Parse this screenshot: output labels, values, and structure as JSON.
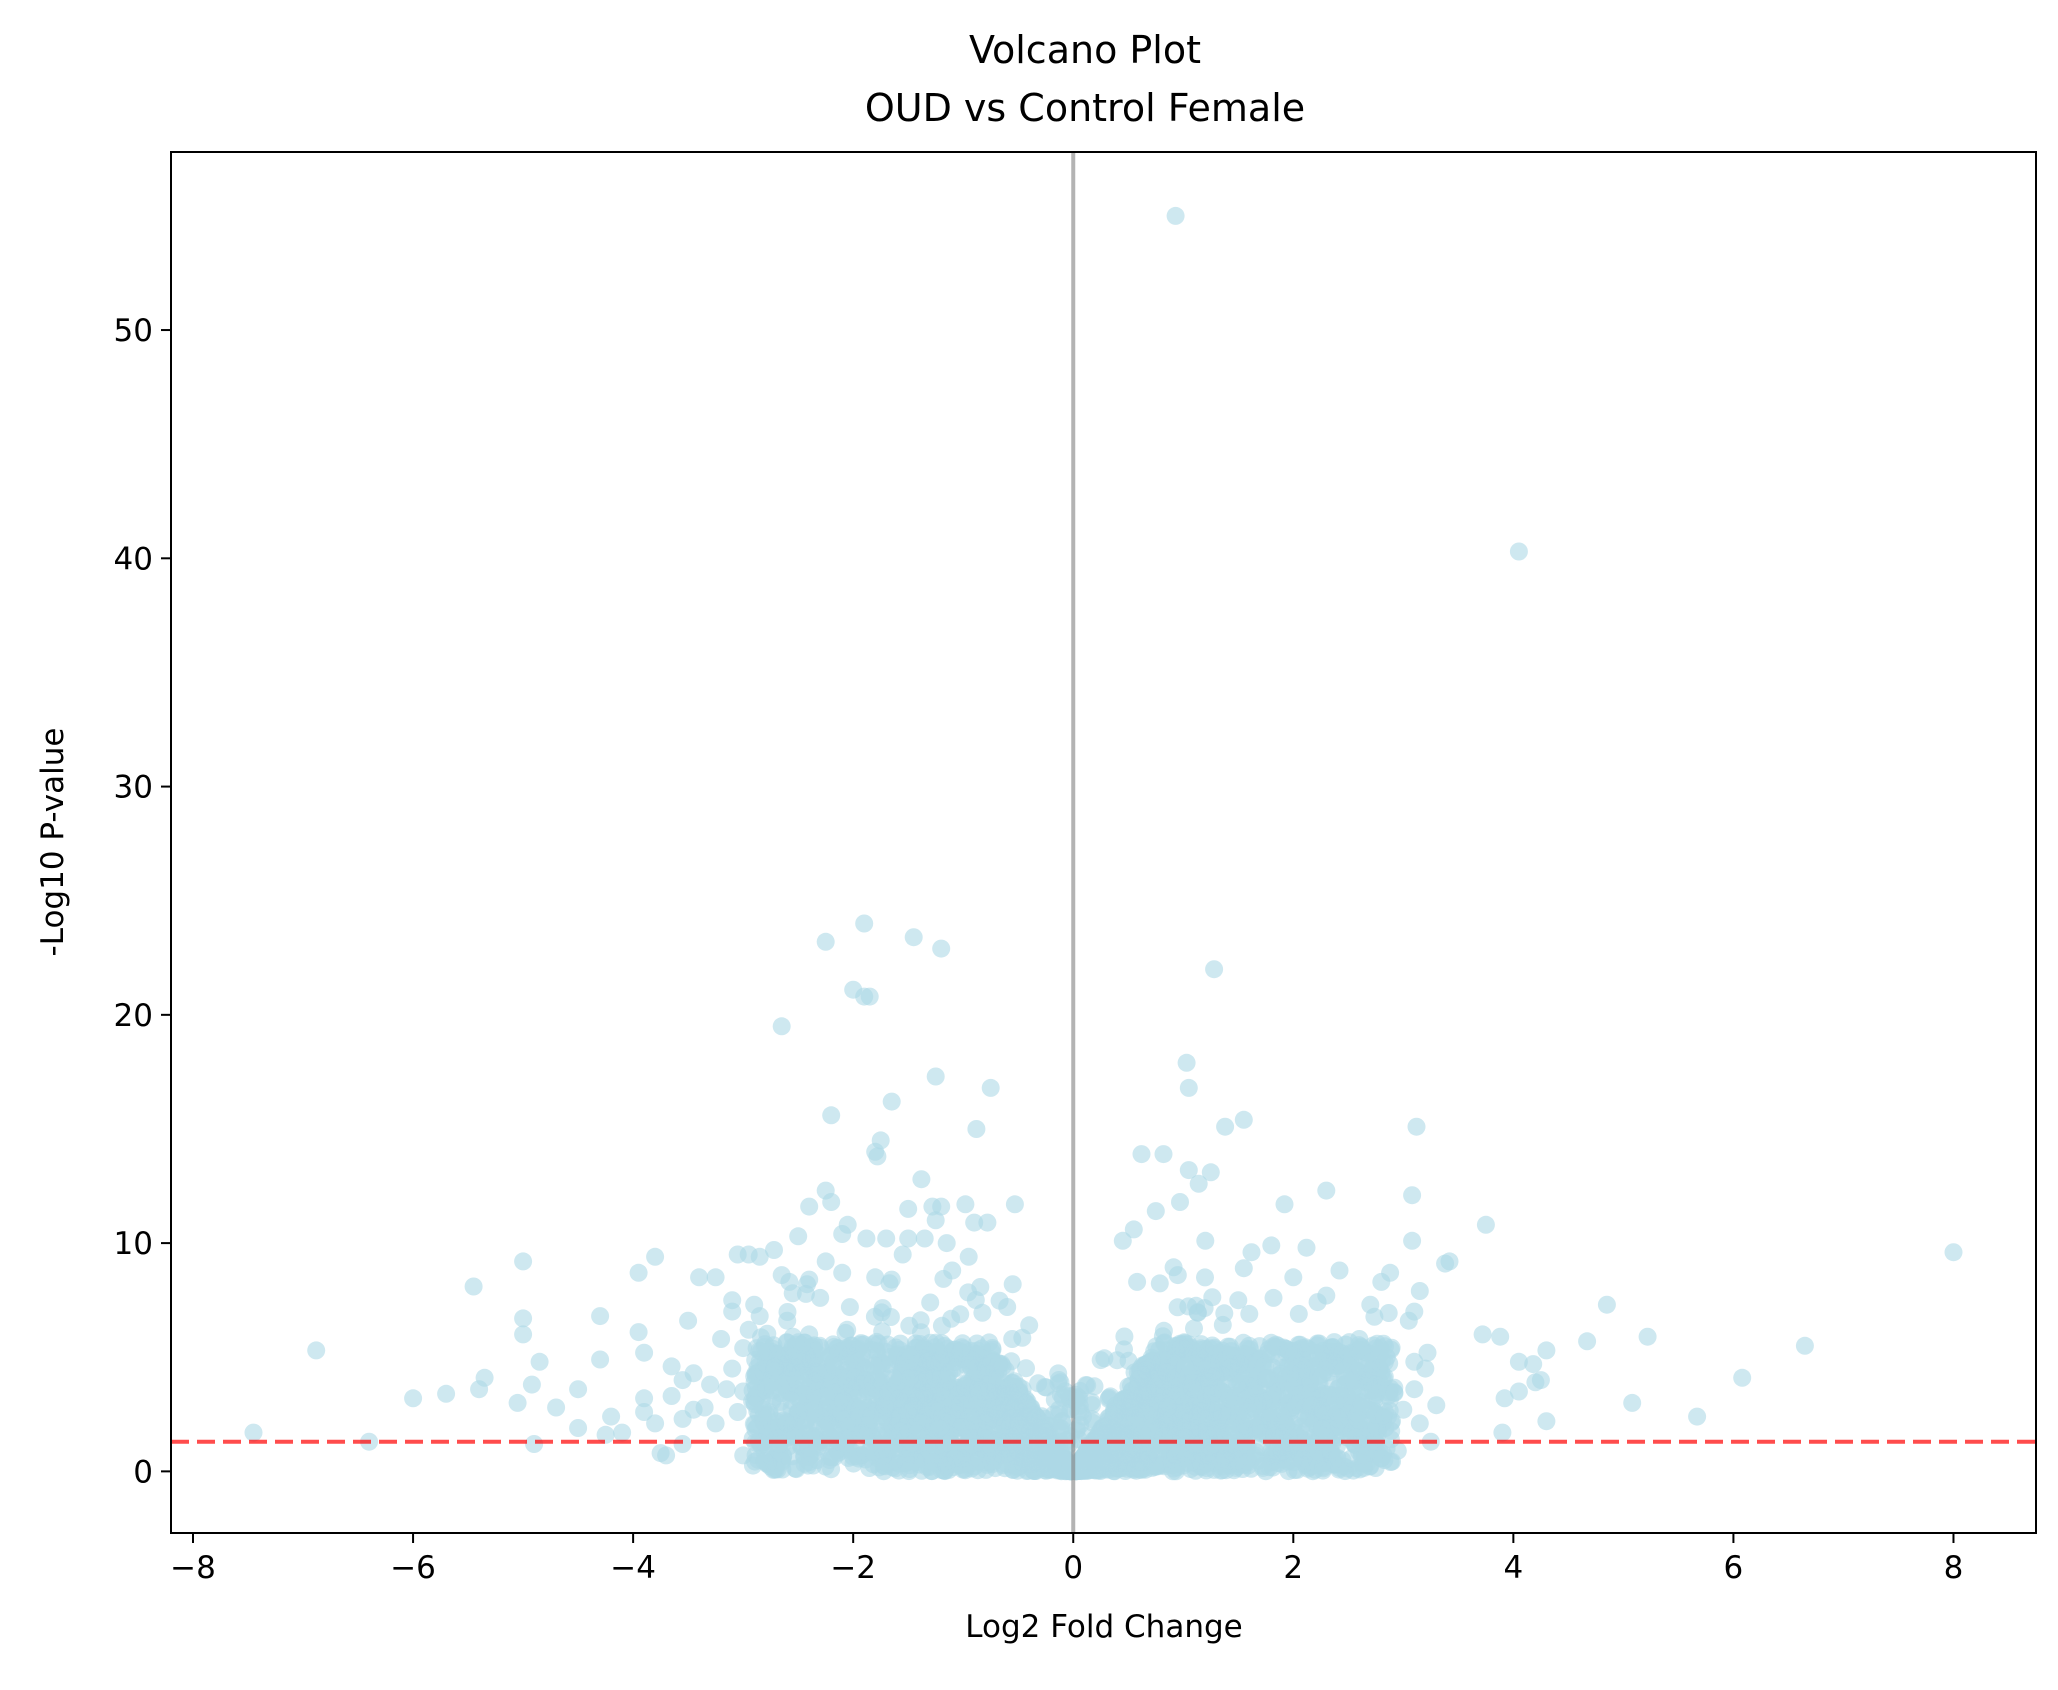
{
  "chart_data": {
    "type": "scatter",
    "title": "Volcano Plot",
    "subtitle": "OUD vs Control Female",
    "xlabel": "Log2 Fold Change",
    "ylabel": "-Log10 P-value",
    "xlim": [
      -8.2,
      8.75
    ],
    "ylim": [
      -2.7,
      57.8
    ],
    "xticks": [
      -8,
      -6,
      -4,
      -2,
      0,
      2,
      4,
      6,
      8
    ],
    "xtick_labels": [
      "−8",
      "−6",
      "−4",
      "−2",
      "0",
      "2",
      "4",
      "6",
      "8"
    ],
    "yticks": [
      0,
      10,
      20,
      30,
      40,
      50
    ],
    "ytick_labels": [
      "0",
      "10",
      "20",
      "30",
      "40",
      "50"
    ],
    "grid": false,
    "point_color": "#add8e6",
    "point_alpha": 0.6,
    "reference_lines": [
      {
        "orientation": "vertical",
        "value": 0,
        "color": "#808080",
        "style": "solid"
      },
      {
        "orientation": "horizontal",
        "value": 1.3,
        "color": "#ff0000",
        "style": "dashed"
      }
    ],
    "points": [
      [
        0.93,
        55.0
      ],
      [
        4.05,
        40.3
      ],
      [
        -1.9,
        24.0
      ],
      [
        -2.25,
        23.2
      ],
      [
        -1.45,
        23.4
      ],
      [
        -1.2,
        22.9
      ],
      [
        1.28,
        22.0
      ],
      [
        -2.0,
        21.1
      ],
      [
        -1.85,
        20.8
      ],
      [
        -1.9,
        20.8
      ],
      [
        -2.65,
        19.5
      ],
      [
        1.03,
        17.9
      ],
      [
        1.05,
        16.8
      ],
      [
        -1.25,
        17.3
      ],
      [
        -0.75,
        16.8
      ],
      [
        -1.65,
        16.2
      ],
      [
        -2.2,
        15.6
      ],
      [
        1.55,
        15.4
      ],
      [
        1.38,
        15.1
      ],
      [
        3.12,
        15.1
      ],
      [
        -0.88,
        15.0
      ],
      [
        -1.75,
        14.5
      ],
      [
        -1.8,
        14.0
      ],
      [
        -1.78,
        13.8
      ],
      [
        0.62,
        13.9
      ],
      [
        0.82,
        13.9
      ],
      [
        1.05,
        13.2
      ],
      [
        1.25,
        13.1
      ],
      [
        -1.38,
        12.8
      ],
      [
        1.14,
        12.6
      ],
      [
        2.3,
        12.3
      ],
      [
        -2.25,
        12.3
      ],
      [
        3.08,
        12.1
      ],
      [
        -2.4,
        11.6
      ],
      [
        -2.2,
        11.8
      ],
      [
        -1.5,
        11.5
      ],
      [
        -1.28,
        11.6
      ],
      [
        -1.2,
        11.6
      ],
      [
        -0.98,
        11.7
      ],
      [
        -0.53,
        11.7
      ],
      [
        1.92,
        11.7
      ],
      [
        0.97,
        11.8
      ],
      [
        0.75,
        11.4
      ],
      [
        -1.25,
        11.0
      ],
      [
        -0.9,
        10.9
      ],
      [
        -0.78,
        10.9
      ],
      [
        3.75,
        10.8
      ],
      [
        -2.05,
        10.8
      ],
      [
        -2.1,
        10.4
      ],
      [
        0.55,
        10.6
      ],
      [
        0.45,
        10.1
      ],
      [
        -2.5,
        10.3
      ],
      [
        -1.88,
        10.2
      ],
      [
        -1.7,
        10.2
      ],
      [
        -1.5,
        10.2
      ],
      [
        -1.35,
        10.2
      ],
      [
        -1.15,
        10.0
      ],
      [
        1.2,
        10.1
      ],
      [
        3.08,
        10.1
      ],
      [
        1.8,
        9.9
      ],
      [
        2.12,
        9.8
      ],
      [
        -3.05,
        9.5
      ],
      [
        -3.8,
        9.4
      ],
      [
        -2.95,
        9.5
      ],
      [
        -2.85,
        9.4
      ],
      [
        -2.72,
        9.7
      ],
      [
        -2.25,
        9.2
      ],
      [
        -1.55,
        9.5
      ],
      [
        -0.95,
        9.4
      ],
      [
        1.62,
        9.6
      ],
      [
        8.0,
        9.6
      ],
      [
        3.42,
        9.2
      ],
      [
        3.38,
        9.1
      ],
      [
        -5.0,
        9.2
      ],
      [
        -3.95,
        8.7
      ],
      [
        -3.4,
        8.5
      ],
      [
        -3.25,
        8.5
      ],
      [
        -2.65,
        8.6
      ],
      [
        -2.4,
        8.4
      ],
      [
        -2.1,
        8.7
      ],
      [
        -1.8,
        8.5
      ],
      [
        -1.65,
        8.4
      ],
      [
        -1.1,
        8.8
      ],
      [
        -0.55,
        8.2
      ],
      [
        0.58,
        8.3
      ],
      [
        0.95,
        8.6
      ],
      [
        1.55,
        8.9
      ],
      [
        2.0,
        8.5
      ],
      [
        2.42,
        8.8
      ],
      [
        2.88,
        8.7
      ],
      [
        2.8,
        8.3
      ],
      [
        -5.45,
        8.1
      ],
      [
        -2.58,
        8.3
      ],
      [
        -2.42,
        8.2
      ],
      [
        3.15,
        7.9
      ],
      [
        2.3,
        7.7
      ],
      [
        -2.9,
        7.3
      ],
      [
        -3.1,
        7.5
      ],
      [
        -2.55,
        7.8
      ],
      [
        -2.3,
        7.6
      ],
      [
        -1.3,
        7.4
      ],
      [
        -0.6,
        7.2
      ],
      [
        1.5,
        7.5
      ],
      [
        1.82,
        7.6
      ],
      [
        2.7,
        7.3
      ],
      [
        4.85,
        7.3
      ],
      [
        3.1,
        7.0
      ],
      [
        1.6,
        6.9
      ],
      [
        2.05,
        6.9
      ],
      [
        -5.0,
        6.7
      ],
      [
        -4.3,
        6.8
      ],
      [
        -3.5,
        6.6
      ],
      [
        -3.1,
        7.0
      ],
      [
        -2.85,
        6.8
      ],
      [
        -2.6,
        6.6
      ],
      [
        -0.4,
        6.4
      ],
      [
        3.05,
        6.6
      ],
      [
        -5.0,
        6.0
      ],
      [
        -3.95,
        6.1
      ],
      [
        -3.2,
        5.8
      ],
      [
        -2.95,
        6.2
      ],
      [
        -2.4,
        6.0
      ],
      [
        3.72,
        6.0
      ],
      [
        3.88,
        5.9
      ],
      [
        5.22,
        5.9
      ],
      [
        4.67,
        5.7
      ],
      [
        6.65,
        5.5
      ],
      [
        -3.9,
        5.2
      ],
      [
        -3.0,
        5.4
      ],
      [
        2.22,
        5.6
      ],
      [
        2.6,
        5.8
      ],
      [
        3.22,
        5.2
      ],
      [
        -4.85,
        4.8
      ],
      [
        -4.3,
        4.9
      ],
      [
        -3.65,
        4.6
      ],
      [
        -3.45,
        4.3
      ],
      [
        -3.1,
        4.5
      ],
      [
        2.85,
        5.0
      ],
      [
        3.1,
        4.8
      ],
      [
        4.05,
        4.8
      ],
      [
        4.18,
        4.7
      ],
      [
        4.3,
        5.3
      ],
      [
        2.5,
        4.0
      ],
      [
        3.2,
        4.5
      ],
      [
        -5.35,
        4.1
      ],
      [
        -4.92,
        3.8
      ],
      [
        -3.55,
        4.0
      ],
      [
        -3.3,
        3.8
      ],
      [
        -3.15,
        3.6
      ],
      [
        -3.0,
        3.5
      ],
      [
        2.75,
        3.8
      ],
      [
        3.1,
        3.6
      ],
      [
        -4.5,
        3.6
      ],
      [
        -3.9,
        3.2
      ],
      [
        -3.65,
        3.3
      ],
      [
        -3.45,
        2.7
      ],
      [
        4.25,
        4.0
      ],
      [
        4.2,
        3.9
      ],
      [
        6.08,
        4.1
      ],
      [
        -5.4,
        3.6
      ],
      [
        -5.7,
        3.4
      ],
      [
        -6.0,
        3.2
      ],
      [
        -5.05,
        3.0
      ],
      [
        -4.7,
        2.8
      ],
      [
        -4.2,
        2.4
      ],
      [
        -3.9,
        2.6
      ],
      [
        -3.35,
        2.8
      ],
      [
        -3.05,
        2.6
      ],
      [
        3.92,
        3.2
      ],
      [
        4.05,
        3.5
      ],
      [
        5.08,
        3.0
      ],
      [
        3.3,
        2.9
      ],
      [
        3.0,
        2.7
      ],
      [
        -6.88,
        5.3
      ],
      [
        -4.5,
        1.9
      ],
      [
        -3.8,
        2.1
      ],
      [
        -3.55,
        2.3
      ],
      [
        -3.25,
        2.1
      ],
      [
        -2.7,
        2.2
      ],
      [
        -4.25,
        1.6
      ],
      [
        -4.1,
        1.7
      ],
      [
        -7.45,
        1.7
      ],
      [
        3.15,
        2.1
      ],
      [
        4.3,
        2.2
      ],
      [
        5.67,
        2.4
      ],
      [
        3.9,
        1.7
      ],
      [
        3.25,
        1.3
      ],
      [
        -6.4,
        1.3
      ],
      [
        -4.9,
        1.2
      ],
      [
        -3.75,
        0.8
      ],
      [
        -3.7,
        0.7
      ],
      [
        -3.55,
        1.2
      ],
      [
        -3.0,
        0.7
      ],
      [
        2.4,
        0.6
      ],
      [
        2.65,
        0.7
      ],
      [
        2.95,
        0.9
      ]
    ]
  }
}
